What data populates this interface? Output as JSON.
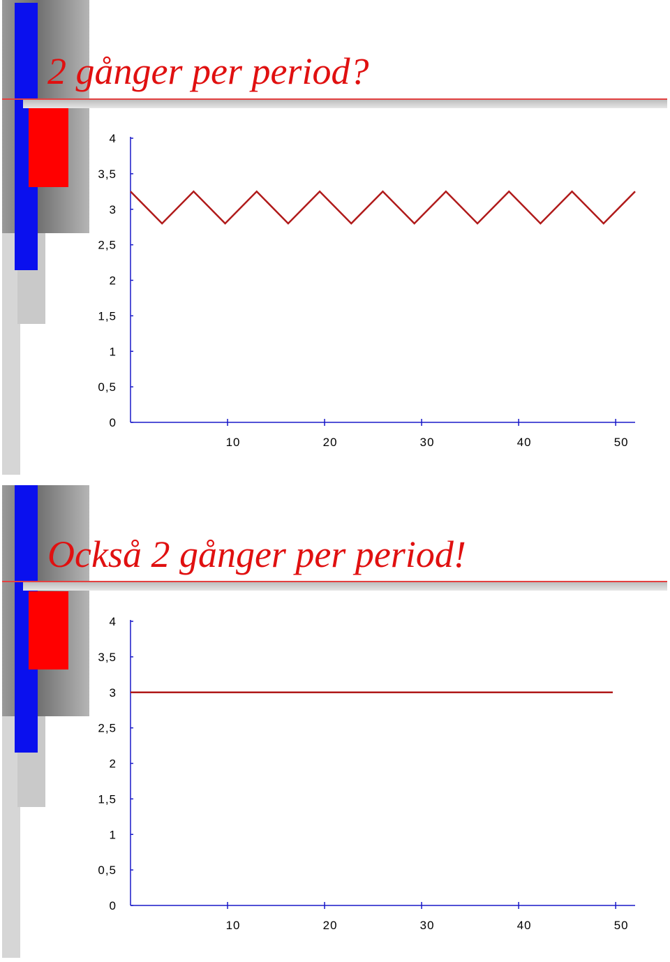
{
  "colors": {
    "title": "#e01010",
    "deco_blue": "#0a10ee",
    "deco_red": "#ff0000",
    "axis": "#1818c8",
    "series": "#b01a1a",
    "deco_gray_dark": "#8a8a8a",
    "deco_gray_light": "#cfcfcf",
    "rule": "#e34040"
  },
  "slides": [
    {
      "title": "2 gånger per period?",
      "chart_data": {
        "type": "line",
        "title": "",
        "xlabel": "",
        "ylabel": "",
        "xlim": [
          0,
          52
        ],
        "ylim": [
          0,
          4
        ],
        "yticks": [
          0,
          0.5,
          1,
          1.5,
          2,
          2.5,
          3,
          3.5,
          4
        ],
        "ytick_labels": [
          "0",
          "0,5",
          "1",
          "1,5",
          "2",
          "2,5",
          "3",
          "3,5",
          "4"
        ],
        "xticks": [
          10,
          20,
          30,
          40,
          50
        ],
        "xtick_labels": [
          "10",
          "20",
          "30",
          "40",
          "50"
        ],
        "grid": false,
        "series": [
          {
            "x": [
              0,
              3.25,
              6.5,
              9.75,
              13,
              16.25,
              19.5,
              22.75,
              26,
              29.25,
              32.5,
              35.75,
              39,
              42.25,
              45.5,
              48.75,
              52
            ],
            "values": [
              3.25,
              2.8,
              3.25,
              2.8,
              3.25,
              2.8,
              3.25,
              2.8,
              3.25,
              2.8,
              3.25,
              2.8,
              3.25,
              2.8,
              3.25,
              2.8,
              3.25
            ]
          }
        ]
      }
    },
    {
      "title": "Också 2 gånger per period!",
      "chart_data": {
        "type": "line",
        "title": "",
        "xlabel": "",
        "ylabel": "",
        "xlim": [
          0,
          52
        ],
        "ylim": [
          0,
          4
        ],
        "yticks": [
          0,
          0.5,
          1,
          1.5,
          2,
          2.5,
          3,
          3.5,
          4
        ],
        "ytick_labels": [
          "0",
          "0,5",
          "1",
          "1,5",
          "2",
          "2,5",
          "3",
          "3,5",
          "4"
        ],
        "xticks": [
          10,
          20,
          30,
          40,
          50
        ],
        "xtick_labels": [
          "10",
          "20",
          "30",
          "40",
          "50"
        ],
        "grid": false,
        "series": [
          {
            "x": [
              0,
              49.7
            ],
            "values": [
              3,
              3
            ]
          }
        ]
      }
    }
  ]
}
